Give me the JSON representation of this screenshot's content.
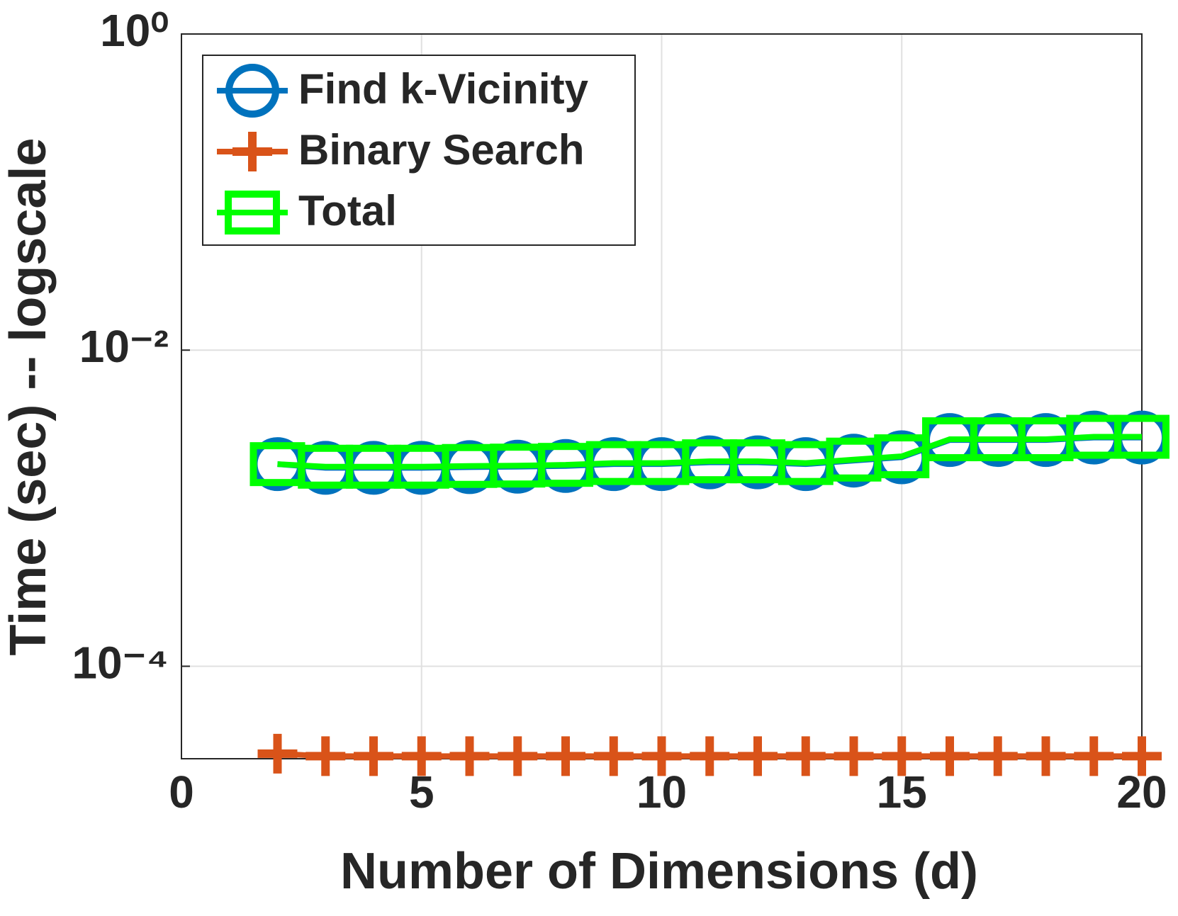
{
  "chart_data": {
    "type": "line",
    "xlabel": "Number of Dimensions (d)",
    "ylabel": "Time (sec) -- logscale",
    "x": [
      2,
      3,
      4,
      5,
      6,
      7,
      8,
      9,
      10,
      11,
      12,
      13,
      14,
      15,
      16,
      17,
      18,
      19,
      20
    ],
    "series": [
      {
        "name": "Find k-Vicinity",
        "color": "#0072bd",
        "marker": "circle",
        "values": [
          0.0019,
          0.0018,
          0.0018,
          0.0018,
          0.00182,
          0.00183,
          0.00185,
          0.0019,
          0.0019,
          0.00195,
          0.00195,
          0.0019,
          0.002,
          0.0021,
          0.0027,
          0.0027,
          0.0027,
          0.0028,
          0.0028
        ]
      },
      {
        "name": "Binary Search",
        "color": "#d95319",
        "marker": "plus",
        "values": [
          2.8e-05,
          2.7e-05,
          2.7e-05,
          2.7e-05,
          2.7e-05,
          2.7e-05,
          2.7e-05,
          2.7e-05,
          2.7e-05,
          2.7e-05,
          2.7e-05,
          2.7e-05,
          2.7e-05,
          2.7e-05,
          2.7e-05,
          2.7e-05,
          2.7e-05,
          2.7e-05,
          2.7e-05
        ]
      },
      {
        "name": "Total",
        "color": "#00ff00",
        "marker": "square",
        "values": [
          0.0019,
          0.00183,
          0.00183,
          0.00183,
          0.00185,
          0.00186,
          0.00188,
          0.00193,
          0.00193,
          0.00198,
          0.00198,
          0.00193,
          0.00203,
          0.00213,
          0.00273,
          0.00273,
          0.00273,
          0.00283,
          0.00283
        ]
      }
    ],
    "xlim": [
      0,
      20
    ],
    "xticks": [
      0,
      5,
      10,
      15,
      20
    ],
    "ylim": [
      2.6e-05,
      1
    ],
    "log_y": true,
    "yticks": [
      {
        "value": 0.0001,
        "label": "10⁻⁴"
      },
      {
        "value": 0.01,
        "label": "10⁻²"
      },
      {
        "value": 1,
        "label": "10⁰"
      }
    ],
    "grid": true,
    "legend": "top-left"
  }
}
